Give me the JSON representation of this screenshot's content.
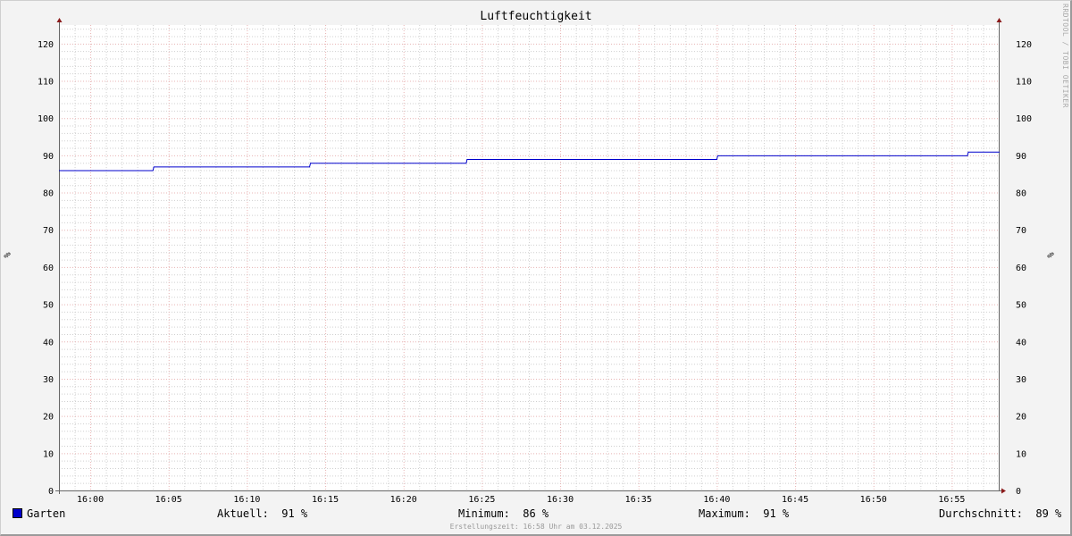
{
  "chart_data": {
    "type": "line",
    "title": "Luftfeuchtigkeit",
    "ylabel": "%",
    "ylabel_right": "%",
    "ylim": [
      0,
      125
    ],
    "yticks": [
      0,
      10,
      20,
      30,
      40,
      50,
      60,
      70,
      80,
      90,
      100,
      110,
      120
    ],
    "xlim": [
      "15:58",
      "16:58"
    ],
    "xticks": [
      "16:00",
      "16:05",
      "16:10",
      "16:15",
      "16:20",
      "16:25",
      "16:30",
      "16:35",
      "16:40",
      "16:45",
      "16:50",
      "16:55"
    ],
    "grid": true,
    "series": [
      {
        "name": "Garten",
        "color": "#0000cc",
        "step": true,
        "x": [
          "15:58",
          "16:04",
          "16:14",
          "16:24",
          "16:40",
          "16:56",
          "16:58"
        ],
        "y": [
          86,
          87,
          88,
          89,
          90,
          91,
          91
        ]
      }
    ]
  },
  "legend": {
    "series_name": "Garten",
    "current": "Aktuell:  91 %",
    "minimum": "Minimum:  86 %",
    "maximum": "Maximum:  91 %",
    "average": "Durchschnitt:  89 %"
  },
  "watermark": "RRDTOOL / TOBI OETIKER",
  "footer": "Erstellungszeit: 16:58 Uhr am 03.12.2025"
}
